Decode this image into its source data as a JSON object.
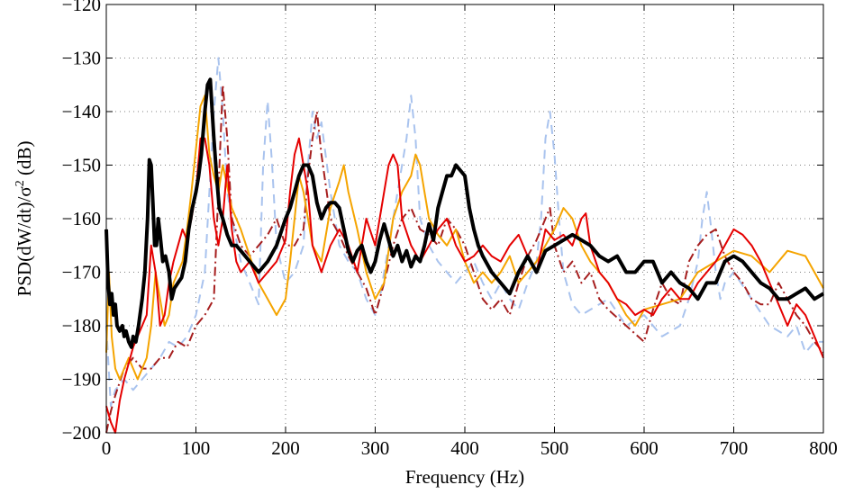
{
  "chart_data": {
    "type": "line",
    "title": "",
    "xlabel": "Frequency (Hz)",
    "ylabel_parts": {
      "main": "PSD(dW/dt)/σ",
      "sup": "2",
      "tail": " (dB)"
    },
    "xlim": [
      0,
      800
    ],
    "ylim": [
      -200,
      -120
    ],
    "xticks": [
      0,
      100,
      200,
      300,
      400,
      500,
      600,
      700,
      800
    ],
    "yticks": [
      -200,
      -190,
      -180,
      -170,
      -160,
      -150,
      -140,
      -130,
      -120
    ],
    "grid": true,
    "legend": "none",
    "series": [
      {
        "color": "#a9c3ee",
        "dash": "dashed",
        "width": 2,
        "x": [
          0,
          5,
          10,
          20,
          30,
          40,
          50,
          60,
          70,
          80,
          90,
          100,
          110,
          115,
          120,
          125,
          130,
          135,
          140,
          150,
          160,
          170,
          175,
          180,
          185,
          190,
          200,
          210,
          220,
          225,
          230,
          235,
          240,
          250,
          260,
          270,
          280,
          290,
          300,
          305,
          310,
          320,
          330,
          335,
          340,
          345,
          350,
          360,
          370,
          380,
          390,
          400,
          410,
          420,
          430,
          440,
          450,
          460,
          470,
          480,
          485,
          490,
          495,
          500,
          505,
          510,
          520,
          530,
          540,
          560,
          580,
          600,
          620,
          640,
          650,
          660,
          665,
          670,
          675,
          680,
          685,
          690,
          700,
          720,
          740,
          760,
          770,
          780,
          790,
          800
        ],
        "y": [
          -180,
          -195,
          -192,
          -190,
          -192,
          -190,
          -188,
          -186,
          -183,
          -184,
          -182,
          -178,
          -170,
          -155,
          -140,
          -130,
          -140,
          -155,
          -160,
          -168,
          -172,
          -176,
          -150,
          -138,
          -150,
          -165,
          -172,
          -170,
          -165,
          -150,
          -140,
          -145,
          -142,
          -155,
          -165,
          -168,
          -170,
          -175,
          -178,
          -175,
          -170,
          -160,
          -150,
          -145,
          -137,
          -145,
          -160,
          -165,
          -168,
          -170,
          -172,
          -170,
          -168,
          -172,
          -175,
          -172,
          -175,
          -177,
          -172,
          -168,
          -160,
          -145,
          -140,
          -148,
          -160,
          -170,
          -176,
          -178,
          -177,
          -175,
          -180,
          -178,
          -182,
          -180,
          -175,
          -168,
          -160,
          -155,
          -162,
          -170,
          -175,
          -172,
          -170,
          -175,
          -180,
          -182,
          -180,
          -185,
          -183,
          -183
        ]
      },
      {
        "color": "#a61e1e",
        "dash": "dashdot",
        "width": 2,
        "x": [
          0,
          5,
          10,
          20,
          30,
          40,
          50,
          60,
          70,
          80,
          90,
          100,
          110,
          120,
          125,
          130,
          135,
          140,
          150,
          160,
          170,
          180,
          190,
          200,
          210,
          220,
          225,
          230,
          235,
          240,
          250,
          260,
          270,
          280,
          290,
          300,
          310,
          320,
          330,
          340,
          350,
          360,
          370,
          380,
          390,
          400,
          410,
          420,
          430,
          440,
          450,
          460,
          470,
          480,
          490,
          495,
          500,
          510,
          520,
          530,
          540,
          550,
          560,
          580,
          600,
          610,
          620,
          630,
          640,
          650,
          660,
          670,
          680,
          690,
          700,
          710,
          720,
          730,
          740,
          750,
          760,
          770,
          780,
          790,
          800
        ],
        "y": [
          -200,
          -196,
          -193,
          -188,
          -186,
          -188,
          -188,
          -186,
          -186,
          -183,
          -184,
          -180,
          -178,
          -175,
          -155,
          -135,
          -145,
          -160,
          -165,
          -167,
          -165,
          -163,
          -160,
          -165,
          -165,
          -162,
          -152,
          -145,
          -140,
          -148,
          -160,
          -163,
          -167,
          -170,
          -173,
          -178,
          -172,
          -165,
          -160,
          -158,
          -162,
          -163,
          -165,
          -160,
          -162,
          -165,
          -170,
          -175,
          -177,
          -175,
          -178,
          -172,
          -167,
          -164,
          -160,
          -158,
          -165,
          -170,
          -168,
          -172,
          -170,
          -175,
          -177,
          -180,
          -183,
          -177,
          -172,
          -175,
          -176,
          -168,
          -165,
          -163,
          -162,
          -167,
          -170,
          -172,
          -175,
          -176,
          -176,
          -172,
          -175,
          -178,
          -180,
          -183,
          -185
        ]
      },
      {
        "color": "#f5a400",
        "dash": "solid",
        "width": 2,
        "x": [
          0,
          3,
          6,
          10,
          15,
          20,
          25,
          30,
          35,
          40,
          45,
          50,
          55,
          60,
          65,
          70,
          75,
          80,
          85,
          90,
          95,
          100,
          105,
          110,
          115,
          120,
          125,
          130,
          140,
          150,
          160,
          170,
          180,
          190,
          200,
          205,
          210,
          215,
          220,
          230,
          240,
          250,
          260,
          265,
          270,
          280,
          290,
          300,
          310,
          320,
          330,
          340,
          345,
          350,
          355,
          360,
          370,
          380,
          390,
          400,
          410,
          420,
          430,
          440,
          450,
          460,
          470,
          480,
          490,
          500,
          510,
          520,
          530,
          540,
          550,
          560,
          570,
          580,
          590,
          600,
          620,
          640,
          660,
          680,
          700,
          720,
          740,
          760,
          780,
          790,
          800
        ],
        "y": [
          -185,
          -170,
          -182,
          -188,
          -190,
          -188,
          -186,
          -188,
          -190,
          -188,
          -186,
          -180,
          -170,
          -175,
          -180,
          -178,
          -172,
          -170,
          -168,
          -162,
          -155,
          -147,
          -139,
          -137,
          -148,
          -152,
          -155,
          -150,
          -158,
          -162,
          -167,
          -172,
          -175,
          -178,
          -175,
          -168,
          -160,
          -152,
          -155,
          -165,
          -168,
          -158,
          -153,
          -150,
          -155,
          -162,
          -170,
          -175,
          -172,
          -160,
          -155,
          -152,
          -148,
          -150,
          -155,
          -160,
          -163,
          -165,
          -162,
          -168,
          -172,
          -170,
          -172,
          -170,
          -167,
          -172,
          -170,
          -168,
          -165,
          -162,
          -158,
          -160,
          -165,
          -168,
          -170,
          -172,
          -175,
          -178,
          -180,
          -177,
          -176,
          -175,
          -170,
          -168,
          -166,
          -167,
          -170,
          -166,
          -167,
          -170,
          -173
        ]
      },
      {
        "color": "#e50000",
        "dash": "solid",
        "width": 2,
        "x": [
          0,
          5,
          10,
          15,
          20,
          25,
          30,
          35,
          40,
          45,
          50,
          55,
          60,
          65,
          70,
          75,
          80,
          85,
          90,
          95,
          100,
          105,
          110,
          115,
          120,
          125,
          130,
          135,
          140,
          145,
          150,
          160,
          170,
          180,
          190,
          200,
          205,
          210,
          215,
          220,
          225,
          230,
          240,
          250,
          260,
          270,
          280,
          290,
          300,
          310,
          315,
          320,
          325,
          330,
          340,
          350,
          360,
          370,
          380,
          390,
          400,
          410,
          420,
          430,
          440,
          450,
          460,
          470,
          480,
          490,
          500,
          510,
          520,
          530,
          535,
          540,
          550,
          560,
          570,
          580,
          590,
          600,
          610,
          620,
          630,
          640,
          650,
          660,
          670,
          680,
          690,
          700,
          710,
          720,
          730,
          740,
          750,
          760,
          770,
          780,
          790,
          800
        ],
        "y": [
          -195,
          -198,
          -200,
          -194,
          -190,
          -187,
          -184,
          -182,
          -180,
          -178,
          -165,
          -170,
          -180,
          -178,
          -172,
          -168,
          -165,
          -162,
          -164,
          -160,
          -155,
          -145,
          -145,
          -150,
          -160,
          -165,
          -160,
          -150,
          -162,
          -168,
          -170,
          -168,
          -172,
          -170,
          -168,
          -164,
          -155,
          -148,
          -145,
          -150,
          -155,
          -165,
          -170,
          -165,
          -162,
          -165,
          -170,
          -160,
          -165,
          -155,
          -150,
          -148,
          -150,
          -160,
          -165,
          -168,
          -165,
          -162,
          -160,
          -165,
          -168,
          -167,
          -165,
          -167,
          -168,
          -165,
          -163,
          -167,
          -170,
          -162,
          -164,
          -163,
          -165,
          -160,
          -159,
          -165,
          -170,
          -172,
          -175,
          -176,
          -178,
          -177,
          -178,
          -175,
          -173,
          -175,
          -175,
          -172,
          -170,
          -168,
          -165,
          -162,
          -163,
          -165,
          -168,
          -172,
          -176,
          -180,
          -176,
          -178,
          -182,
          -186
        ]
      },
      {
        "color": "#000000",
        "dash": "solid",
        "width": 4,
        "x": [
          0,
          2,
          4,
          6,
          8,
          10,
          12,
          15,
          18,
          20,
          22,
          25,
          28,
          30,
          33,
          36,
          40,
          43,
          46,
          48,
          50,
          52,
          54,
          56,
          58,
          60,
          63,
          66,
          70,
          73,
          76,
          80,
          84,
          88,
          92,
          96,
          100,
          103,
          106,
          110,
          113,
          116,
          120,
          123,
          126,
          130,
          135,
          140,
          145,
          150,
          160,
          170,
          180,
          190,
          200,
          205,
          210,
          215,
          220,
          225,
          230,
          235,
          240,
          245,
          250,
          255,
          260,
          265,
          270,
          275,
          280,
          285,
          290,
          295,
          300,
          305,
          310,
          315,
          320,
          325,
          330,
          335,
          340,
          345,
          350,
          355,
          360,
          365,
          370,
          375,
          380,
          385,
          390,
          395,
          400,
          405,
          410,
          415,
          420,
          430,
          440,
          450,
          460,
          470,
          480,
          490,
          500,
          510,
          520,
          530,
          540,
          550,
          560,
          570,
          580,
          590,
          600,
          610,
          620,
          630,
          640,
          650,
          660,
          670,
          680,
          690,
          700,
          710,
          720,
          730,
          740,
          750,
          760,
          770,
          780,
          790,
          800
        ],
        "y": [
          -162,
          -172,
          -176,
          -174,
          -178,
          -176,
          -180,
          -181,
          -180,
          -182,
          -181,
          -183,
          -184,
          -182,
          -183,
          -180,
          -175,
          -170,
          -160,
          -149,
          -150,
          -157,
          -165,
          -165,
          -160,
          -163,
          -168,
          -167,
          -170,
          -175,
          -173,
          -172,
          -171,
          -168,
          -162,
          -158,
          -155,
          -152,
          -148,
          -140,
          -135,
          -134,
          -145,
          -152,
          -158,
          -160,
          -163,
          -165,
          -165,
          -166,
          -168,
          -170,
          -168,
          -165,
          -160,
          -158,
          -155,
          -152,
          -150,
          -150,
          -152,
          -157,
          -160,
          -158,
          -157,
          -157,
          -158,
          -162,
          -166,
          -168,
          -166,
          -165,
          -168,
          -170,
          -168,
          -164,
          -161,
          -164,
          -167,
          -165,
          -168,
          -166,
          -169,
          -167,
          -168,
          -165,
          -161,
          -164,
          -158,
          -155,
          -152,
          -152,
          -150,
          -151,
          -152,
          -158,
          -162,
          -165,
          -167,
          -170,
          -172,
          -174,
          -170,
          -167,
          -170,
          -166,
          -165,
          -164,
          -163,
          -164,
          -165,
          -167,
          -168,
          -167,
          -170,
          -170,
          -168,
          -168,
          -172,
          -170,
          -172,
          -173,
          -175,
          -172,
          -172,
          -168,
          -167,
          -168,
          -170,
          -172,
          -173,
          -175,
          -175,
          -174,
          -173,
          -175,
          -174
        ]
      }
    ]
  }
}
